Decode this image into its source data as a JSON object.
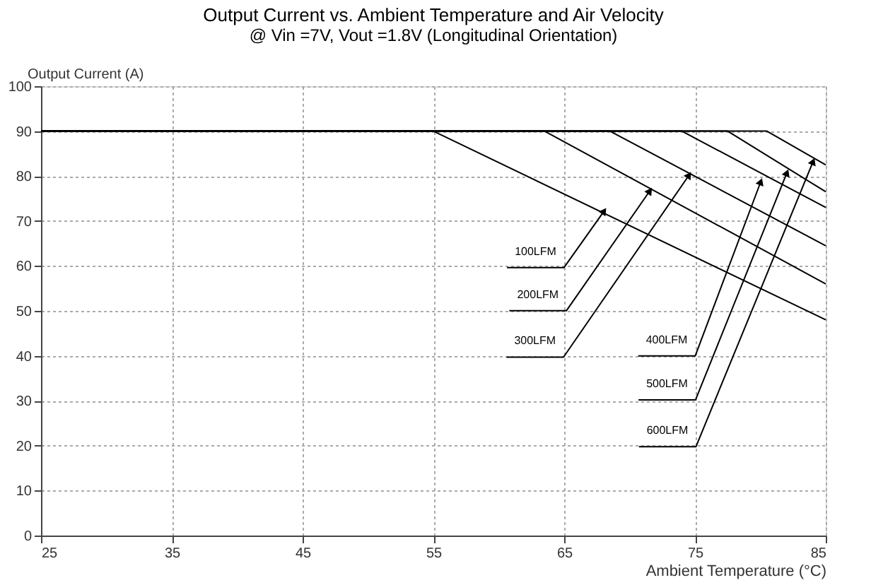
{
  "chart_data": {
    "type": "line",
    "title": "Output Current vs. Ambient Temperature and Air Velocity",
    "subtitle": "@ Vin =7V, Vout =1.8V (Longitudinal Orientation)",
    "xlabel": "Ambient Temperature (°C)",
    "ylabel": "Output Current (A)",
    "series": [
      {
        "color": "#000000",
        "x": [
          25,
          55,
          85
        ],
        "values": [
          90,
          90,
          48
        ]
      },
      {
        "color": "#000000",
        "x": [
          25,
          63.5,
          85
        ],
        "values": [
          90,
          90,
          56
        ]
      },
      {
        "color": "#000000",
        "x": [
          25,
          68.5,
          85
        ],
        "values": [
          90,
          90,
          64.5
        ]
      },
      {
        "color": "#000000",
        "x": [
          25,
          74,
          85
        ],
        "values": [
          90,
          90,
          73
        ]
      },
      {
        "color": "#000000",
        "x": [
          25,
          77.5,
          85
        ],
        "values": [
          90,
          90,
          76.5
        ]
      },
      {
        "color": "#000000",
        "x": [
          25,
          80.5,
          85
        ],
        "values": [
          90,
          90,
          82.5
        ]
      }
    ],
    "annotations": [
      {
        "text": "100LFM",
        "x": 68,
        "y": 72
      },
      {
        "text": "200LFM",
        "x": 71.5,
        "y": 76.5
      },
      {
        "text": "300LFM",
        "x": 74.5,
        "y": 80
      },
      {
        "text": "400LFM",
        "x": 80,
        "y": 78.5
      },
      {
        "text": "500LFM",
        "x": 82,
        "y": 80.5
      },
      {
        "text": "600LFM",
        "x": 84,
        "y": 83
      }
    ],
    "xlim": [
      25,
      85
    ],
    "xticks": [
      25,
      35,
      45,
      55,
      65,
      75,
      85
    ],
    "ylim": [
      0,
      100
    ],
    "yticks": [
      0,
      10,
      20,
      30,
      40,
      50,
      60,
      70,
      80,
      90,
      100
    ],
    "grid": true,
    "marker": "none",
    "line_style": "solid"
  }
}
